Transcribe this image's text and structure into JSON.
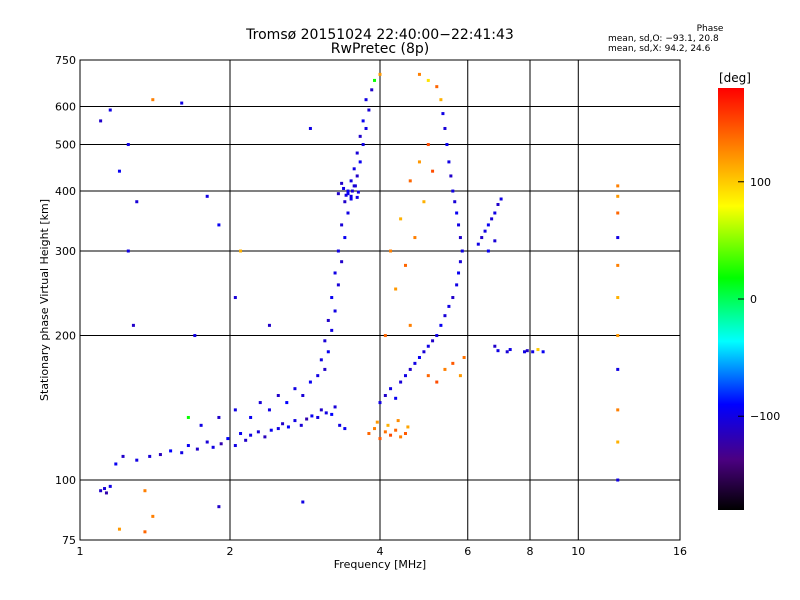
{
  "header": {
    "title": "Tromsø 20151024 22:40:00−22:41:43",
    "subtitle": "RwPretec (8p)"
  },
  "phase_info": {
    "label": "Phase",
    "line_o": "mean, sd,O: −93.1, 20.8",
    "line_x": "mean, sd,X:  94.2, 24.6"
  },
  "colorbar": {
    "unit_label": "[deg]",
    "ticks": [
      {
        "value": 100,
        "label": "100"
      },
      {
        "value": 0,
        "label": "0"
      },
      {
        "value": -100,
        "label": "−100"
      }
    ],
    "range": [
      -180,
      180
    ],
    "colormap": "rainbow (black → purple → blue → cyan → green → yellow → orange → red)"
  },
  "chart_data": {
    "type": "scatter",
    "title": "Tromsø 20151024 22:40:00−22:41:43",
    "subtitle": "RwPretec (8p)",
    "xlabel": "Frequency [MHz]",
    "ylabel": "Stationary phase Virtual Height [km]",
    "xscale": "log",
    "yscale": "log",
    "xlim": [
      1,
      16
    ],
    "ylim": [
      75,
      750
    ],
    "grid": true,
    "x_ticks": [
      {
        "value": 1,
        "label": "1"
      },
      {
        "value": 2,
        "label": "2"
      },
      {
        "value": 4,
        "label": "4"
      },
      {
        "value": 6,
        "label": "6"
      },
      {
        "value": 8,
        "label": "8"
      },
      {
        "value": 10,
        "label": "10"
      },
      {
        "value": 16,
        "label": "16"
      }
    ],
    "x_gridlines": [
      2,
      4,
      6,
      8,
      10
    ],
    "y_ticks": [
      {
        "value": 75,
        "label": "75"
      },
      {
        "value": 100,
        "label": "100"
      },
      {
        "value": 200,
        "label": "200"
      },
      {
        "value": 300,
        "label": "300"
      },
      {
        "value": 400,
        "label": "400"
      },
      {
        "value": 500,
        "label": "500"
      },
      {
        "value": 600,
        "label": "600"
      },
      {
        "value": 750,
        "label": "750"
      }
    ],
    "y_gridlines": [
      100,
      200,
      300,
      400,
      500,
      600
    ],
    "points": [
      [
        1.1,
        95,
        -110
      ],
      [
        1.12,
        96,
        -105
      ],
      [
        1.13,
        94,
        -120
      ],
      [
        1.15,
        97,
        -100
      ],
      [
        1.18,
        108,
        -95
      ],
      [
        1.22,
        112,
        -110
      ],
      [
        1.3,
        110,
        -100
      ],
      [
        1.38,
        112,
        -105
      ],
      [
        1.45,
        113,
        -115
      ],
      [
        1.52,
        115,
        -90
      ],
      [
        1.6,
        114,
        -100
      ],
      [
        1.65,
        118,
        -95
      ],
      [
        1.72,
        116,
        -110
      ],
      [
        1.8,
        120,
        -105
      ],
      [
        1.85,
        117,
        -100
      ],
      [
        1.92,
        119,
        -120
      ],
      [
        1.98,
        122,
        -90
      ],
      [
        2.05,
        118,
        -100
      ],
      [
        2.1,
        125,
        -95
      ],
      [
        2.15,
        121,
        -110
      ],
      [
        2.2,
        124,
        -100
      ],
      [
        2.28,
        126,
        -105
      ],
      [
        2.35,
        123,
        -115
      ],
      [
        2.42,
        127,
        -95
      ],
      [
        2.5,
        128,
        -100
      ],
      [
        2.55,
        131,
        -110
      ],
      [
        2.62,
        129,
        -90
      ],
      [
        2.7,
        133,
        -100
      ],
      [
        2.78,
        130,
        -105
      ],
      [
        2.85,
        134,
        -120
      ],
      [
        2.92,
        136,
        -95
      ],
      [
        3.0,
        135,
        -100
      ],
      [
        3.05,
        140,
        -110
      ],
      [
        3.12,
        138,
        -100
      ],
      [
        3.2,
        137,
        -90
      ],
      [
        3.25,
        142,
        -105
      ],
      [
        3.32,
        130,
        -100
      ],
      [
        3.4,
        128,
        -95
      ],
      [
        1.75,
        130,
        -100
      ],
      [
        1.9,
        135,
        -110
      ],
      [
        2.05,
        140,
        -100
      ],
      [
        2.2,
        135,
        -95
      ],
      [
        2.3,
        145,
        -105
      ],
      [
        2.4,
        140,
        -100
      ],
      [
        2.5,
        150,
        -110
      ],
      [
        2.6,
        145,
        -90
      ],
      [
        2.7,
        155,
        -100
      ],
      [
        2.8,
        150,
        -105
      ],
      [
        2.9,
        160,
        -95
      ],
      [
        3.0,
        165,
        -100
      ],
      [
        3.1,
        170,
        -110
      ],
      [
        3.05,
        178,
        -100
      ],
      [
        3.15,
        185,
        -95
      ],
      [
        3.1,
        195,
        -105
      ],
      [
        3.2,
        205,
        -100
      ],
      [
        3.15,
        215,
        -110
      ],
      [
        3.25,
        225,
        -100
      ],
      [
        3.2,
        240,
        -95
      ],
      [
        3.3,
        255,
        -105
      ],
      [
        3.25,
        270,
        -100
      ],
      [
        3.35,
        285,
        -110
      ],
      [
        3.3,
        300,
        -100
      ],
      [
        3.4,
        320,
        -95
      ],
      [
        3.35,
        340,
        -105
      ],
      [
        3.45,
        360,
        -100
      ],
      [
        3.4,
        380,
        -110
      ],
      [
        3.5,
        390,
        -100
      ],
      [
        3.45,
        400,
        -95
      ],
      [
        3.55,
        410,
        -105
      ],
      [
        3.5,
        420,
        -100
      ],
      [
        3.6,
        430,
        -110
      ],
      [
        3.55,
        445,
        -100
      ],
      [
        3.65,
        460,
        -95
      ],
      [
        3.6,
        480,
        -105
      ],
      [
        3.7,
        500,
        -100
      ],
      [
        3.65,
        520,
        -110
      ],
      [
        3.75,
        540,
        -100
      ],
      [
        3.7,
        560,
        -95
      ],
      [
        3.8,
        590,
        -105
      ],
      [
        3.75,
        620,
        -100
      ],
      [
        3.85,
        650,
        -110
      ],
      [
        3.9,
        680,
        20
      ],
      [
        4.0,
        700,
        120
      ],
      [
        3.3,
        395,
        -110
      ],
      [
        3.38,
        405,
        -100
      ],
      [
        3.45,
        395,
        -95
      ],
      [
        3.52,
        400,
        -105
      ],
      [
        3.6,
        388,
        -100
      ],
      [
        3.35,
        415,
        -110
      ],
      [
        3.42,
        392,
        -100
      ],
      [
        3.5,
        385,
        -95
      ],
      [
        3.57,
        410,
        -105
      ],
      [
        3.62,
        398,
        -100
      ],
      [
        3.8,
        125,
        140
      ],
      [
        3.9,
        128,
        130
      ],
      [
        4.0,
        122,
        145
      ],
      [
        4.1,
        126,
        135
      ],
      [
        4.2,
        124,
        150
      ],
      [
        4.3,
        127,
        140
      ],
      [
        4.4,
        123,
        130
      ],
      [
        4.5,
        125,
        145
      ],
      [
        3.95,
        132,
        120
      ],
      [
        4.15,
        130,
        110
      ],
      [
        4.35,
        133,
        125
      ],
      [
        4.55,
        129,
        115
      ],
      [
        4.0,
        145,
        -100
      ],
      [
        4.1,
        150,
        -110
      ],
      [
        4.2,
        155,
        -100
      ],
      [
        4.3,
        148,
        -95
      ],
      [
        4.4,
        160,
        -105
      ],
      [
        4.5,
        165,
        -100
      ],
      [
        4.6,
        170,
        -110
      ],
      [
        4.7,
        175,
        -100
      ],
      [
        4.8,
        180,
        -95
      ],
      [
        4.9,
        185,
        -105
      ],
      [
        5.0,
        190,
        -100
      ],
      [
        5.1,
        195,
        -110
      ],
      [
        5.2,
        200,
        -100
      ],
      [
        5.3,
        210,
        -95
      ],
      [
        5.4,
        220,
        -105
      ],
      [
        5.5,
        230,
        -100
      ],
      [
        5.6,
        240,
        -110
      ],
      [
        5.7,
        255,
        -100
      ],
      [
        5.75,
        270,
        -95
      ],
      [
        5.8,
        285,
        -105
      ],
      [
        5.85,
        300,
        -100
      ],
      [
        5.8,
        320,
        -110
      ],
      [
        5.75,
        340,
        -100
      ],
      [
        5.7,
        360,
        -95
      ],
      [
        5.65,
        380,
        -105
      ],
      [
        5.6,
        400,
        -100
      ],
      [
        5.55,
        430,
        -110
      ],
      [
        5.5,
        460,
        -100
      ],
      [
        5.45,
        500,
        -95
      ],
      [
        5.4,
        540,
        -105
      ],
      [
        5.35,
        580,
        -100
      ],
      [
        5.3,
        620,
        110
      ],
      [
        5.2,
        660,
        140
      ],
      [
        5.0,
        680,
        90
      ],
      [
        4.8,
        700,
        130
      ],
      [
        4.2,
        300,
        130
      ],
      [
        4.4,
        350,
        110
      ],
      [
        4.6,
        420,
        140
      ],
      [
        4.8,
        460,
        120
      ],
      [
        5.0,
        500,
        150
      ],
      [
        4.3,
        250,
        120
      ],
      [
        4.5,
        280,
        140
      ],
      [
        4.7,
        320,
        130
      ],
      [
        4.9,
        380,
        110
      ],
      [
        5.1,
        440,
        150
      ],
      [
        4.1,
        200,
        140
      ],
      [
        4.6,
        210,
        130
      ],
      [
        5.0,
        165,
        140
      ],
      [
        5.2,
        160,
        150
      ],
      [
        5.4,
        170,
        130
      ],
      [
        5.6,
        175,
        145
      ],
      [
        5.8,
        165,
        120
      ],
      [
        5.9,
        180,
        135
      ],
      [
        6.3,
        310,
        -100
      ],
      [
        6.4,
        320,
        -110
      ],
      [
        6.5,
        330,
        -100
      ],
      [
        6.6,
        340,
        -95
      ],
      [
        6.7,
        350,
        -105
      ],
      [
        6.8,
        360,
        -100
      ],
      [
        6.9,
        375,
        -110
      ],
      [
        7.0,
        385,
        -100
      ],
      [
        6.6,
        300,
        -95
      ],
      [
        6.8,
        315,
        -105
      ],
      [
        7.8,
        185,
        -100
      ],
      [
        7.9,
        186,
        -110
      ],
      [
        8.1,
        185,
        -100
      ],
      [
        8.3,
        187,
        100
      ],
      [
        8.5,
        185,
        -95
      ],
      [
        7.2,
        185,
        -105
      ],
      [
        7.3,
        187,
        -100
      ],
      [
        6.8,
        190,
        -110
      ],
      [
        6.9,
        186,
        -100
      ],
      [
        12.0,
        410,
        130
      ],
      [
        12.0,
        390,
        120
      ],
      [
        12.0,
        360,
        140
      ],
      [
        12.0,
        320,
        -100
      ],
      [
        12.0,
        280,
        130
      ],
      [
        12.0,
        240,
        110
      ],
      [
        12.0,
        200,
        120
      ],
      [
        12.0,
        170,
        -100
      ],
      [
        12.0,
        140,
        130
      ],
      [
        12.0,
        120,
        110
      ],
      [
        12.0,
        100,
        -100
      ],
      [
        1.15,
        590,
        -100
      ],
      [
        1.1,
        560,
        -110
      ],
      [
        1.4,
        620,
        130
      ],
      [
        1.6,
        610,
        -100
      ],
      [
        1.25,
        500,
        -100
      ],
      [
        1.2,
        440,
        -95
      ],
      [
        1.3,
        380,
        -105
      ],
      [
        1.25,
        300,
        -100
      ],
      [
        1.28,
        210,
        -110
      ],
      [
        1.8,
        390,
        -100
      ],
      [
        1.9,
        340,
        -95
      ],
      [
        2.05,
        240,
        -105
      ],
      [
        2.1,
        300,
        110
      ],
      [
        1.7,
        200,
        -100
      ],
      [
        2.4,
        210,
        -110
      ],
      [
        2.9,
        540,
        -100
      ],
      [
        2.8,
        90,
        -100
      ],
      [
        1.9,
        88,
        -110
      ],
      [
        1.4,
        84,
        130
      ],
      [
        1.35,
        78,
        140
      ],
      [
        1.2,
        79,
        120
      ],
      [
        1.35,
        95,
        130
      ],
      [
        1.65,
        135,
        20
      ]
    ]
  }
}
